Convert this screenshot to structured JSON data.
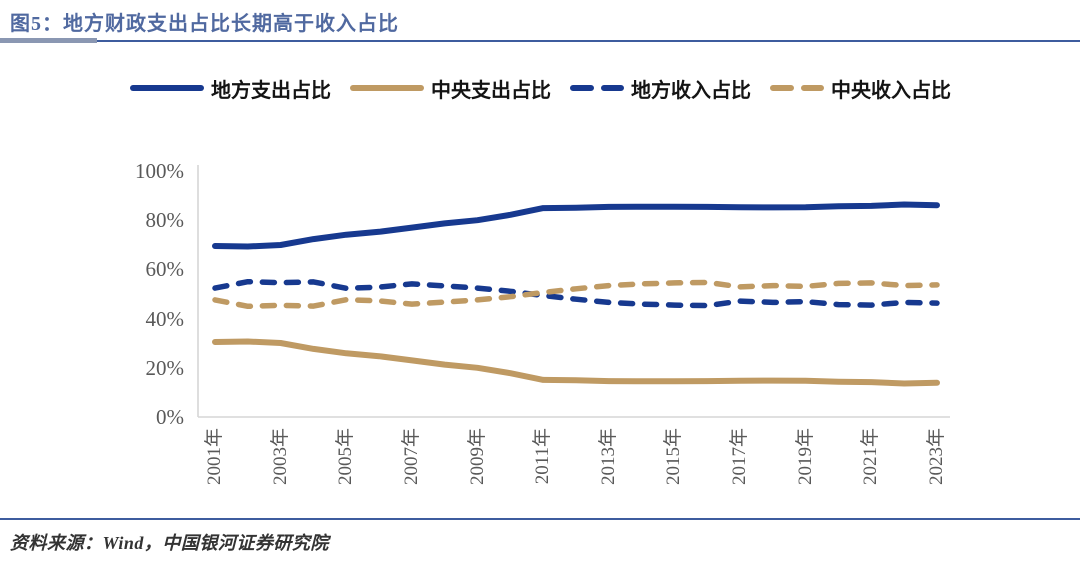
{
  "title": "图5：地方财政支出占比长期高于收入占比",
  "source_note": "资料来源：Wind，中国银河证券研究院",
  "colors": {
    "navy": "#17398F",
    "tan": "#BF9A63",
    "title_blue": "#5069A0",
    "rule_blue": "#3D5C9E",
    "axis_gray": "#D6D6D6",
    "tick_gray": "#595959"
  },
  "legend": {
    "items": [
      {
        "label": "地方支出占比",
        "style": "solid",
        "color_key": "navy"
      },
      {
        "label": "中央支出占比",
        "style": "solid",
        "color_key": "tan"
      },
      {
        "label": "地方收入占比",
        "style": "dashed",
        "color_key": "navy"
      },
      {
        "label": "中央收入占比",
        "style": "dashed",
        "color_key": "tan"
      }
    ]
  },
  "chart_data": {
    "type": "line",
    "x": [
      2001,
      2002,
      2003,
      2004,
      2005,
      2006,
      2007,
      2008,
      2009,
      2010,
      2011,
      2012,
      2013,
      2014,
      2015,
      2016,
      2017,
      2018,
      2019,
      2020,
      2021,
      2022,
      2023
    ],
    "x_tick_labels": [
      "2001年",
      "2003年",
      "2005年",
      "2007年",
      "2009年",
      "2011年",
      "2013年",
      "2015年",
      "2017年",
      "2019年",
      "2021年",
      "2023年"
    ],
    "y_tick_labels": [
      "0%",
      "20%",
      "40%",
      "60%",
      "80%",
      "100%"
    ],
    "y_tick_values": [
      0,
      20,
      40,
      60,
      80,
      100
    ],
    "ylim": [
      0,
      100
    ],
    "grid": false,
    "legend_position": "top",
    "series": [
      {
        "name": "地方支出占比",
        "style": "solid",
        "color_key": "navy",
        "values": [
          69.5,
          69.3,
          69.9,
          72.3,
          74.1,
          75.3,
          77.0,
          78.7,
          80.0,
          82.2,
          84.9,
          85.1,
          85.4,
          85.5,
          85.5,
          85.4,
          85.3,
          85.2,
          85.3,
          85.7,
          85.8,
          86.4,
          86.1
        ]
      },
      {
        "name": "中央支出占比",
        "style": "solid",
        "color_key": "tan",
        "values": [
          30.5,
          30.7,
          30.1,
          27.7,
          25.9,
          24.7,
          23.0,
          21.3,
          20.0,
          17.8,
          15.1,
          14.9,
          14.6,
          14.5,
          14.5,
          14.6,
          14.7,
          14.8,
          14.7,
          14.3,
          14.2,
          13.6,
          13.9
        ]
      },
      {
        "name": "地方收入占比",
        "style": "dashed",
        "color_key": "navy",
        "values": [
          52.4,
          55.0,
          54.6,
          54.9,
          52.3,
          52.8,
          54.1,
          53.3,
          52.4,
          51.1,
          49.4,
          47.9,
          46.6,
          45.9,
          45.5,
          45.3,
          47.1,
          46.6,
          46.9,
          45.7,
          45.5,
          46.6,
          46.3
        ]
      },
      {
        "name": "中央收入占比",
        "style": "dashed",
        "color_key": "tan",
        "values": [
          47.6,
          45.0,
          45.4,
          45.1,
          47.7,
          47.2,
          45.9,
          46.7,
          47.6,
          48.9,
          50.6,
          52.1,
          53.4,
          54.1,
          54.5,
          54.7,
          52.9,
          53.4,
          53.1,
          54.3,
          54.5,
          53.4,
          53.7
        ]
      }
    ]
  }
}
